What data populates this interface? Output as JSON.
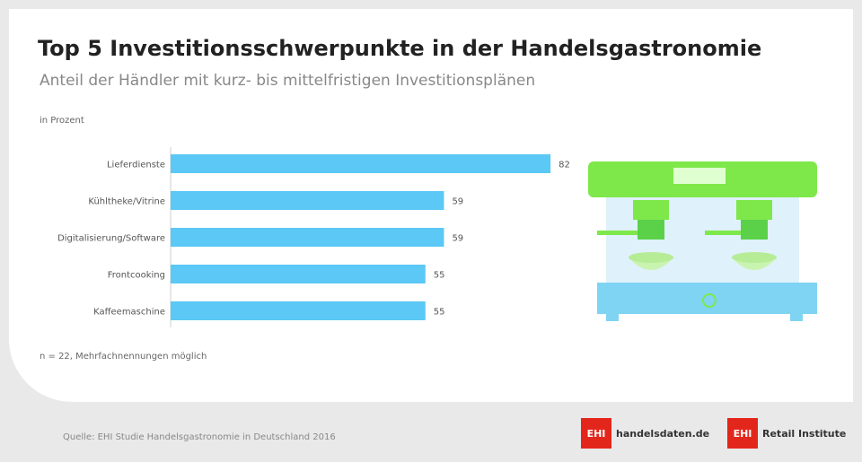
{
  "title": "Top 5 Investitionsschwerpunkte in der Handelsgastronomie",
  "subtitle": "Anteil der Händler mit kurz- bis mittelfristigen Investitionsplänen",
  "unit": "in Prozent",
  "note": "n = 22, Mehrfachnennungen möglich",
  "source": "Quelle: EHI Studie Handelsgastronomie in Deutschland 2016",
  "logos": [
    {
      "mark": "EHI",
      "text": "handelsdaten.de"
    },
    {
      "mark": "EHI",
      "text": "Retail Institute"
    }
  ],
  "colors": {
    "bar": "#5bc8f5",
    "accent": "#7ee84a"
  },
  "chart_data": {
    "type": "bar",
    "orientation": "horizontal",
    "categories": [
      "Lieferdienste",
      "Kühltheke/Vitrine",
      "Digitalisierung/Software",
      "Frontcooking",
      "Kaffeemaschine"
    ],
    "values": [
      82,
      59,
      59,
      55,
      55
    ],
    "xlim": [
      0,
      100
    ],
    "grid": false,
    "legend": "none"
  }
}
